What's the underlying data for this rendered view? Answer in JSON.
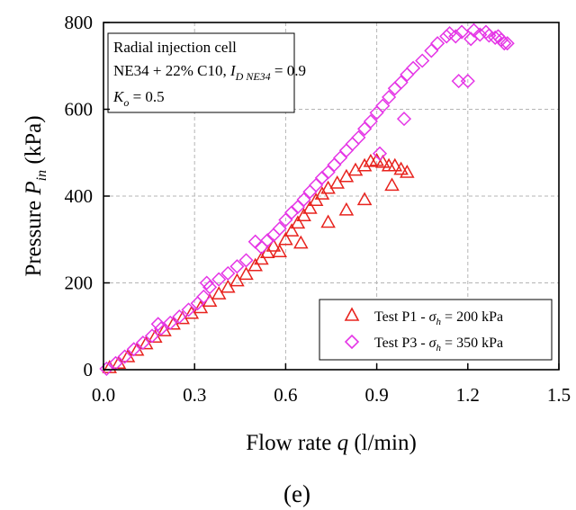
{
  "chart_data": {
    "type": "scatter",
    "xlabel": {
      "main": "Flow rate ",
      "var": "q",
      "unit": " (l/min)"
    },
    "ylabel": {
      "main": "Pressure ",
      "var": "P",
      "sub": "in",
      "unit": " (kPa)"
    },
    "xlim": [
      0,
      1.5
    ],
    "ylim": [
      0,
      800
    ],
    "xticks": [
      "0.0",
      "0.3",
      "0.6",
      "0.9",
      "1.2",
      "1.5"
    ],
    "yticks": [
      "0",
      "200",
      "400",
      "600",
      "800"
    ],
    "grid": true,
    "caption": "(e)",
    "info_box": {
      "line1": "Radial injection cell",
      "line2_prefix": "NE34 + 22% C10, ",
      "line2_var": "I",
      "line2_sub": "D NE34",
      "line2_suffix": " = 0.9",
      "line3_var": "K",
      "line3_sub": "o",
      "line3_suffix": " = 0.5"
    },
    "legend_position": "bottom-right",
    "series": [
      {
        "name": "Test P1",
        "legend_prefix": "Test P1 - ",
        "legend_var": "σ",
        "legend_sub": "h",
        "legend_suffix": " = 200 kPa",
        "marker": "triangle",
        "color": "#e8231e",
        "points": [
          [
            0.02,
            5
          ],
          [
            0.05,
            15
          ],
          [
            0.08,
            30
          ],
          [
            0.11,
            45
          ],
          [
            0.14,
            60
          ],
          [
            0.17,
            75
          ],
          [
            0.2,
            90
          ],
          [
            0.23,
            105
          ],
          [
            0.26,
            118
          ],
          [
            0.29,
            130
          ],
          [
            0.32,
            143
          ],
          [
            0.35,
            158
          ],
          [
            0.38,
            175
          ],
          [
            0.41,
            190
          ],
          [
            0.44,
            205
          ],
          [
            0.47,
            220
          ],
          [
            0.5,
            240
          ],
          [
            0.52,
            255
          ],
          [
            0.54,
            270
          ],
          [
            0.56,
            285
          ],
          [
            0.58,
            272
          ],
          [
            0.6,
            300
          ],
          [
            0.62,
            320
          ],
          [
            0.64,
            338
          ],
          [
            0.65,
            292
          ],
          [
            0.66,
            355
          ],
          [
            0.68,
            372
          ],
          [
            0.7,
            390
          ],
          [
            0.72,
            405
          ],
          [
            0.74,
            418
          ],
          [
            0.74,
            340
          ],
          [
            0.77,
            430
          ],
          [
            0.8,
            445
          ],
          [
            0.8,
            368
          ],
          [
            0.83,
            460
          ],
          [
            0.86,
            470
          ],
          [
            0.86,
            392
          ],
          [
            0.88,
            480
          ],
          [
            0.9,
            482
          ],
          [
            0.92,
            478
          ],
          [
            0.94,
            470
          ],
          [
            0.95,
            425
          ],
          [
            0.96,
            470
          ],
          [
            0.98,
            462
          ],
          [
            1.0,
            455
          ]
        ]
      },
      {
        "name": "Test P3",
        "legend_prefix": "Test P3 - ",
        "legend_var": "σ",
        "legend_sub": "h",
        "legend_suffix": " = 350 kPa",
        "marker": "diamond",
        "color": "#e535e6",
        "points": [
          [
            0.01,
            2
          ],
          [
            0.04,
            15
          ],
          [
            0.07,
            30
          ],
          [
            0.1,
            47
          ],
          [
            0.13,
            62
          ],
          [
            0.16,
            78
          ],
          [
            0.18,
            105
          ],
          [
            0.19,
            95
          ],
          [
            0.22,
            108
          ],
          [
            0.25,
            122
          ],
          [
            0.28,
            138
          ],
          [
            0.31,
            153
          ],
          [
            0.33,
            168
          ],
          [
            0.34,
            200
          ],
          [
            0.35,
            190
          ],
          [
            0.38,
            208
          ],
          [
            0.41,
            222
          ],
          [
            0.44,
            238
          ],
          [
            0.47,
            252
          ],
          [
            0.5,
            295
          ],
          [
            0.52,
            282
          ],
          [
            0.54,
            298
          ],
          [
            0.56,
            310
          ],
          [
            0.58,
            325
          ],
          [
            0.6,
            345
          ],
          [
            0.62,
            362
          ],
          [
            0.64,
            375
          ],
          [
            0.66,
            392
          ],
          [
            0.68,
            410
          ],
          [
            0.7,
            425
          ],
          [
            0.72,
            442
          ],
          [
            0.74,
            455
          ],
          [
            0.76,
            472
          ],
          [
            0.78,
            488
          ],
          [
            0.8,
            505
          ],
          [
            0.82,
            520
          ],
          [
            0.84,
            535
          ],
          [
            0.86,
            555
          ],
          [
            0.88,
            572
          ],
          [
            0.9,
            592
          ],
          [
            0.91,
            498
          ],
          [
            0.92,
            608
          ],
          [
            0.94,
            628
          ],
          [
            0.96,
            648
          ],
          [
            0.98,
            662
          ],
          [
            0.99,
            578
          ],
          [
            1.0,
            680
          ],
          [
            1.02,
            695
          ],
          [
            1.05,
            712
          ],
          [
            1.08,
            735
          ],
          [
            1.1,
            752
          ],
          [
            1.13,
            768
          ],
          [
            1.14,
            775
          ],
          [
            1.16,
            768
          ],
          [
            1.17,
            665
          ],
          [
            1.18,
            778
          ],
          [
            1.2,
            665
          ],
          [
            1.21,
            762
          ],
          [
            1.22,
            782
          ],
          [
            1.24,
            772
          ],
          [
            1.26,
            778
          ],
          [
            1.27,
            770
          ],
          [
            1.29,
            765
          ],
          [
            1.3,
            768
          ],
          [
            1.31,
            760
          ],
          [
            1.32,
            752
          ],
          [
            1.33,
            752
          ]
        ]
      }
    ]
  }
}
